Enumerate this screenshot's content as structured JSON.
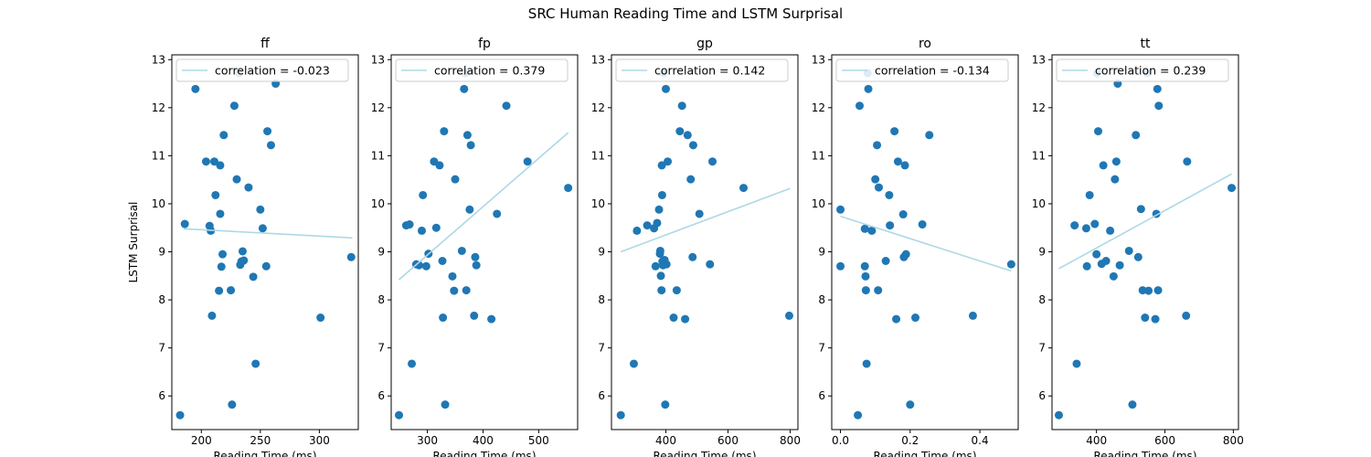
{
  "figure_title": "SRC Human Reading Time and LSTM Surprisal",
  "colors": {
    "points": "#1f77b4",
    "fit_line": "#add8e6",
    "axes": "#000000"
  },
  "chart_data": [
    {
      "type": "scatter",
      "title": "ff",
      "xlabel": "Reading Time (ms)",
      "ylabel": "LSTM Surprisal",
      "xlim": [
        175,
        333
      ],
      "ylim": [
        5.3,
        13.1
      ],
      "xticks": [
        200,
        250,
        300
      ],
      "yticks": [
        6,
        7,
        8,
        9,
        10,
        11,
        12,
        13
      ],
      "legend": {
        "label": "correlation = -0.023",
        "placement": "upper-right"
      },
      "fit_line": {
        "x": [
          185,
          328
        ],
        "y": [
          9.48,
          9.29
        ]
      },
      "points": {
        "x": [
          182,
          186,
          195,
          204,
          207,
          208,
          209,
          211,
          212,
          215,
          216,
          216,
          217,
          218,
          219,
          225,
          226,
          228,
          230,
          232,
          233,
          234,
          235,
          236,
          240,
          244,
          246,
          250,
          252,
          255,
          256,
          259,
          263,
          301,
          327
        ],
        "y": [
          5.6,
          9.58,
          12.39,
          10.88,
          9.54,
          9.44,
          7.67,
          10.88,
          10.18,
          8.19,
          9.79,
          10.8,
          8.69,
          8.95,
          11.43,
          8.2,
          5.82,
          12.04,
          10.51,
          12.72,
          8.73,
          8.8,
          9.01,
          8.82,
          10.34,
          8.48,
          6.67,
          9.88,
          9.49,
          8.7,
          11.51,
          11.22,
          12.5,
          7.63,
          8.89
        ]
      }
    },
    {
      "type": "scatter",
      "title": "fp",
      "xlabel": "Reading Time (ms)",
      "ylabel": "",
      "xlim": [
        235,
        570
      ],
      "ylim": [
        5.3,
        13.1
      ],
      "xticks": [
        300,
        400,
        500
      ],
      "yticks": [
        6,
        7,
        8,
        9,
        10,
        11,
        12,
        13
      ],
      "legend": {
        "label": "correlation = 0.379",
        "placement": "upper-right"
      },
      "fit_line": {
        "x": [
          249,
          553
        ],
        "y": [
          8.42,
          11.48
        ]
      },
      "points": {
        "x": [
          249,
          262,
          268,
          272,
          280,
          285,
          290,
          292,
          298,
          302,
          312,
          316,
          322,
          327,
          328,
          330,
          332,
          345,
          348,
          350,
          362,
          366,
          368,
          370,
          372,
          376,
          378,
          384,
          386,
          388,
          415,
          425,
          442,
          480,
          553
        ],
        "y": [
          5.6,
          9.55,
          9.57,
          6.67,
          8.74,
          8.72,
          9.44,
          10.18,
          8.7,
          8.96,
          10.88,
          9.5,
          10.8,
          8.81,
          7.63,
          11.51,
          5.82,
          8.49,
          8.19,
          10.51,
          9.02,
          12.39,
          12.72,
          8.2,
          11.43,
          9.88,
          11.22,
          7.67,
          8.89,
          8.72,
          7.6,
          9.79,
          12.04,
          10.88,
          10.33
        ]
      }
    },
    {
      "type": "scatter",
      "title": "gp",
      "xlabel": "Reading Time (ms)",
      "ylabel": "",
      "xlim": [
        225,
        825
      ],
      "ylim": [
        5.3,
        13.1
      ],
      "xticks": [
        400,
        600,
        800
      ],
      "yticks": [
        6,
        7,
        8,
        9,
        10,
        11,
        12,
        13
      ],
      "legend": {
        "label": "correlation = 0.142",
        "placement": "upper-right"
      },
      "fit_line": {
        "x": [
          255,
          800
        ],
        "y": [
          9.0,
          10.32
        ]
      },
      "points": {
        "x": [
          255,
          297,
          307,
          340,
          362,
          367,
          372,
          378,
          381,
          382,
          384,
          386,
          387,
          388,
          389,
          391,
          393,
          396,
          398,
          400,
          402,
          406,
          425,
          435,
          445,
          452,
          462,
          470,
          480,
          486,
          488,
          508,
          542,
          550,
          650,
          797
        ],
        "y": [
          5.6,
          6.67,
          9.44,
          9.55,
          9.49,
          8.7,
          9.6,
          9.88,
          8.96,
          9.02,
          8.5,
          8.2,
          10.8,
          10.18,
          8.8,
          8.72,
          12.72,
          8.83,
          5.82,
          12.39,
          8.74,
          10.88,
          7.63,
          8.2,
          11.51,
          12.04,
          7.6,
          11.43,
          10.51,
          8.89,
          11.22,
          9.79,
          8.74,
          10.88,
          10.33,
          7.67
        ]
      }
    },
    {
      "type": "scatter",
      "title": "ro",
      "xlabel": "Reading Time (ms)",
      "ylabel": "",
      "xlim": [
        -0.025,
        0.51
      ],
      "ylim": [
        5.3,
        13.1
      ],
      "xticks": [
        0.0,
        0.2,
        0.4
      ],
      "yticks": [
        6,
        7,
        8,
        9,
        10,
        11,
        12,
        13
      ],
      "legend": {
        "label": "correlation = -0.134",
        "placement": "upper-right"
      },
      "fit_line": {
        "x": [
          0.0,
          0.49
        ],
        "y": [
          9.74,
          8.6
        ]
      },
      "points": {
        "x": [
          0.0,
          0.0,
          0.05,
          0.055,
          0.07,
          0.07,
          0.072,
          0.073,
          0.075,
          0.078,
          0.08,
          0.09,
          0.1,
          0.105,
          0.108,
          0.11,
          0.13,
          0.14,
          0.142,
          0.155,
          0.16,
          0.165,
          0.18,
          0.182,
          0.185,
          0.188,
          0.2,
          0.215,
          0.235,
          0.255,
          0.38,
          0.49
        ],
        "y": [
          9.88,
          8.7,
          5.6,
          12.04,
          9.48,
          8.7,
          8.49,
          8.2,
          6.67,
          12.72,
          12.39,
          9.44,
          10.51,
          11.22,
          8.2,
          10.34,
          8.81,
          10.18,
          9.55,
          11.51,
          7.6,
          10.88,
          9.78,
          8.89,
          10.8,
          8.95,
          5.82,
          7.63,
          9.57,
          11.43,
          7.67,
          8.74
        ]
      }
    },
    {
      "type": "scatter",
      "title": "tt",
      "xlabel": "Reading Time (ms)",
      "ylabel": "",
      "xlim": [
        270,
        815
      ],
      "ylim": [
        5.3,
        13.1
      ],
      "xticks": [
        400,
        600,
        800
      ],
      "yticks": [
        6,
        7,
        8,
        9,
        10,
        11,
        12,
        13
      ],
      "legend": {
        "label": "correlation = 0.239",
        "placement": "upper-right"
      },
      "fit_line": {
        "x": [
          290,
          795
        ],
        "y": [
          8.65,
          10.62
        ]
      },
      "points": {
        "x": [
          290,
          336,
          342,
          370,
          372,
          380,
          395,
          400,
          402,
          405,
          415,
          420,
          428,
          440,
          450,
          454,
          458,
          462,
          468,
          495,
          505,
          515,
          522,
          530,
          535,
          542,
          548,
          552,
          572,
          575,
          578,
          580,
          582,
          662,
          665,
          795
        ],
        "y": [
          5.6,
          9.55,
          6.67,
          9.49,
          8.7,
          10.18,
          9.58,
          8.95,
          12.72,
          11.51,
          8.75,
          10.8,
          8.81,
          9.44,
          8.49,
          10.51,
          10.88,
          12.5,
          8.72,
          9.02,
          5.82,
          11.43,
          8.89,
          9.89,
          8.2,
          7.63,
          12.72,
          8.19,
          7.6,
          9.79,
          12.39,
          8.2,
          12.04,
          7.67,
          10.88,
          10.33
        ]
      }
    }
  ]
}
